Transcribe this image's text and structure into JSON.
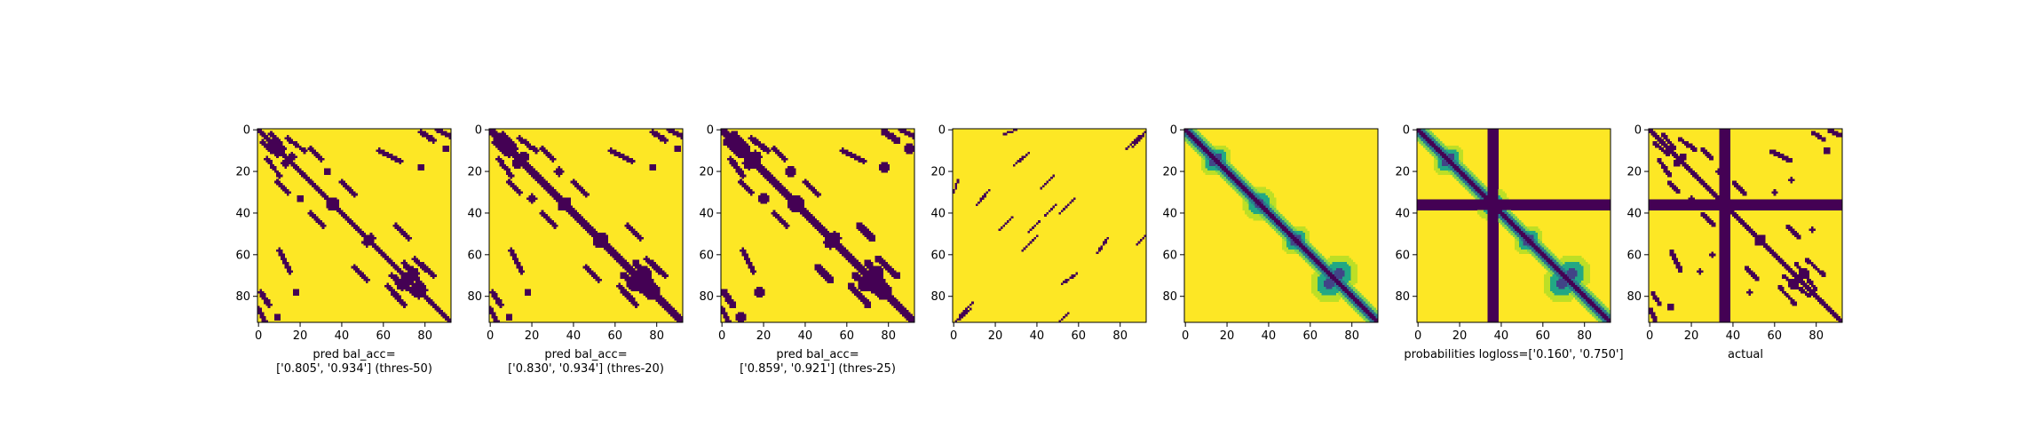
{
  "chart_data": [
    {
      "type": "heatmap",
      "pattern": "pred_thres50",
      "xticks": [
        0,
        20,
        40,
        60,
        80
      ],
      "yticks": [
        0,
        20,
        40,
        60,
        80
      ],
      "xlim": [
        0,
        93
      ],
      "ylim": [
        93,
        0
      ],
      "xlabel": "pred bal_acc=\n['0.805', '0.934'] (thres-50)"
    },
    {
      "type": "heatmap",
      "pattern": "pred_thres20",
      "xticks": [
        0,
        20,
        40,
        60,
        80
      ],
      "yticks": [
        0,
        20,
        40,
        60,
        80
      ],
      "xlim": [
        0,
        93
      ],
      "ylim": [
        93,
        0
      ],
      "xlabel": "pred bal_acc=\n['0.830', '0.934'] (thres-20)"
    },
    {
      "type": "heatmap",
      "pattern": "pred_thres25",
      "xticks": [
        0,
        20,
        40,
        60,
        80
      ],
      "yticks": [
        0,
        20,
        40,
        60,
        80
      ],
      "xlim": [
        0,
        93
      ],
      "ylim": [
        93,
        0
      ],
      "xlabel": "pred bal_acc=\n['0.859', '0.921'] (thres-25)"
    },
    {
      "type": "heatmap",
      "pattern": "sparse_diagonals",
      "xticks": [
        0,
        20,
        40,
        60,
        80
      ],
      "yticks": [
        0,
        20,
        40,
        60,
        80
      ],
      "xlim": [
        0,
        93
      ],
      "ylim": [
        93,
        0
      ],
      "xlabel": ""
    },
    {
      "type": "heatmap",
      "pattern": "probabilities",
      "xticks": [
        0,
        20,
        40,
        60,
        80
      ],
      "yticks": [
        0,
        20,
        40,
        60,
        80
      ],
      "xlim": [
        0,
        93
      ],
      "ylim": [
        93,
        0
      ],
      "xlabel": ""
    },
    {
      "type": "heatmap",
      "pattern": "probabilities_masked",
      "xticks": [
        0,
        20,
        40,
        60,
        80
      ],
      "yticks": [
        0,
        20,
        40,
        60,
        80
      ],
      "xlim": [
        0,
        93
      ],
      "ylim": [
        93,
        0
      ],
      "xlabel": "probabilities logloss=['0.160', '0.750']"
    },
    {
      "type": "heatmap",
      "pattern": "actual",
      "xticks": [
        0,
        20,
        40,
        60,
        80
      ],
      "yticks": [
        0,
        20,
        40,
        60,
        80
      ],
      "xlim": [
        0,
        93
      ],
      "ylim": [
        93,
        0
      ],
      "xlabel": "actual"
    }
  ],
  "colors": {
    "high": "#fde725",
    "low": "#440154",
    "mid1": "#bddf26",
    "mid2": "#7ad151",
    "mid3": "#22a884",
    "mid4": "#2a788e",
    "mid5": "#414487"
  }
}
